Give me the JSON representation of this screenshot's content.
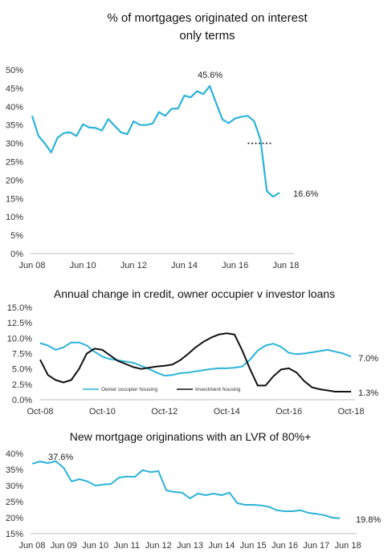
{
  "chart_data": [
    {
      "type": "line",
      "title_lines": [
        "% of mortgages originated on interest",
        "only terms"
      ],
      "yticks": [
        "0%",
        "5%",
        "10%",
        "15%",
        "20%",
        "25%",
        "30%",
        "35%",
        "40%",
        "45%",
        "50%"
      ],
      "ylim": [
        0,
        50
      ],
      "xticks": [
        "Jun 08",
        "Jun 10",
        "Jun 12",
        "Jun 14",
        "Jun 16",
        "Jun 18"
      ],
      "x_tick_years": [
        2008.5,
        2010.5,
        2012.5,
        2014.5,
        2016.5,
        2018.5
      ],
      "xlim": [
        2008.5,
        2018.6
      ],
      "grid": false,
      "color": "#2bb3d9",
      "series": [
        {
          "x": [
            2008.5,
            2008.75,
            2009.0,
            2009.25,
            2009.5,
            2009.75,
            2010.0,
            2010.25,
            2010.5,
            2010.75,
            2011.0,
            2011.25,
            2011.5,
            2011.75,
            2012.0,
            2012.25,
            2012.5,
            2012.75,
            2013.0,
            2013.25,
            2013.5,
            2013.75,
            2014.0,
            2014.25,
            2014.5,
            2014.75,
            2015.0,
            2015.25,
            2015.5,
            2015.75,
            2016.0,
            2016.25,
            2016.5,
            2016.75,
            2017.0,
            2017.25,
            2017.5,
            2017.75,
            2018.0,
            2018.25
          ],
          "values": [
            37.5,
            32.0,
            30.0,
            27.5,
            31.5,
            32.8,
            33.0,
            32.0,
            35.2,
            34.3,
            34.2,
            33.5,
            36.6,
            34.8,
            33.0,
            32.5,
            36.0,
            35.0,
            35.0,
            35.4,
            38.5,
            37.5,
            39.4,
            39.5,
            43.0,
            42.5,
            44.2,
            43.4,
            45.6,
            41.0,
            36.5,
            35.5,
            36.8,
            37.2,
            37.5,
            36.0,
            31.0,
            17.0,
            15.5,
            16.6
          ]
        }
      ],
      "reference_line": {
        "x": [
          2017.0,
          2018.0
        ],
        "value": 30.0
      },
      "annotations": [
        "45.6%",
        "16.6%"
      ]
    },
    {
      "type": "line",
      "title": "Annual change in credit, owner occupier v investor loans",
      "yticks": [
        "0.0%",
        "2.5%",
        "5.0%",
        "7.5%",
        "10.0%",
        "12.5%",
        "15.0%"
      ],
      "ylim": [
        0,
        15
      ],
      "xticks": [
        "Oct-08",
        "Oct-10",
        "Oct-12",
        "Oct-14",
        "Oct-16",
        "Oct-18"
      ],
      "x_tick_years": [
        2008.75,
        2010.75,
        2012.75,
        2014.75,
        2016.75,
        2018.75
      ],
      "xlim": [
        2008.75,
        2018.75
      ],
      "grid": false,
      "legend_position": "bottom-inside",
      "series": [
        {
          "name": "Owner occupier housing",
          "color": "#2bb3d9",
          "x": [
            2008.75,
            2009.0,
            2009.25,
            2009.5,
            2009.75,
            2010.0,
            2010.25,
            2010.5,
            2010.75,
            2011.0,
            2011.25,
            2011.5,
            2011.75,
            2012.0,
            2012.25,
            2012.5,
            2012.75,
            2013.0,
            2013.25,
            2013.5,
            2013.75,
            2014.0,
            2014.25,
            2014.5,
            2014.75,
            2015.0,
            2015.25,
            2015.5,
            2015.75,
            2016.0,
            2016.25,
            2016.5,
            2016.75,
            2017.0,
            2017.25,
            2017.5,
            2017.75,
            2018.0,
            2018.25,
            2018.5,
            2018.75
          ],
          "values": [
            9.2,
            8.8,
            8.1,
            8.5,
            9.3,
            9.3,
            8.8,
            7.8,
            7.0,
            6.6,
            6.4,
            6.2,
            6.0,
            5.5,
            5.0,
            4.4,
            3.9,
            4.0,
            4.3,
            4.4,
            4.6,
            4.8,
            5.0,
            5.1,
            5.1,
            5.2,
            5.4,
            6.5,
            8.0,
            8.8,
            9.1,
            8.6,
            7.6,
            7.4,
            7.5,
            7.7,
            7.9,
            8.1,
            7.8,
            7.5,
            7.0
          ]
        },
        {
          "name": "Investment housing",
          "color": "#111111",
          "x": [
            2008.75,
            2009.0,
            2009.25,
            2009.5,
            2009.75,
            2010.0,
            2010.25,
            2010.5,
            2010.75,
            2011.0,
            2011.25,
            2011.5,
            2011.75,
            2012.0,
            2012.25,
            2012.5,
            2012.75,
            2013.0,
            2013.25,
            2013.5,
            2013.75,
            2014.0,
            2014.25,
            2014.5,
            2014.75,
            2015.0,
            2015.25,
            2015.5,
            2015.75,
            2016.0,
            2016.25,
            2016.5,
            2016.75,
            2017.0,
            2017.25,
            2017.5,
            2017.75,
            2018.0,
            2018.25,
            2018.5,
            2018.75
          ],
          "values": [
            6.5,
            4.0,
            3.2,
            2.8,
            3.2,
            5.0,
            7.5,
            8.3,
            8.1,
            7.2,
            6.3,
            5.8,
            5.3,
            5.0,
            5.2,
            5.4,
            5.5,
            5.7,
            6.4,
            7.4,
            8.5,
            9.4,
            10.1,
            10.6,
            10.8,
            10.6,
            8.0,
            5.0,
            2.3,
            2.3,
            3.8,
            4.9,
            5.1,
            4.4,
            3.0,
            2.0,
            1.7,
            1.5,
            1.3,
            1.3,
            1.3
          ]
        }
      ],
      "annotations": [
        "7.0%",
        "1.3%"
      ]
    },
    {
      "type": "line",
      "title": "New mortgage originations with an LVR of 80%+",
      "yticks": [
        "15%",
        "20%",
        "25%",
        "30%",
        "35%",
        "40%"
      ],
      "ylim": [
        15,
        40
      ],
      "xticks": [
        "Jun 08",
        "Jun 09",
        "Jun 10",
        "Jun 11",
        "Jun 12",
        "Jun 13",
        "Jun 14",
        "Jun 15",
        "Jun 16",
        "Jun 17",
        "Jun 18"
      ],
      "x_tick_years": [
        2008.5,
        2009.5,
        2010.5,
        2011.5,
        2012.5,
        2013.5,
        2014.5,
        2015.5,
        2016.5,
        2017.5,
        2018.5
      ],
      "xlim": [
        2008.5,
        2018.6
      ],
      "grid": false,
      "color": "#2bb3d9",
      "series": [
        {
          "x": [
            2008.5,
            2008.75,
            2009.0,
            2009.25,
            2009.5,
            2009.75,
            2010.0,
            2010.25,
            2010.5,
            2010.75,
            2011.0,
            2011.25,
            2011.5,
            2011.75,
            2012.0,
            2012.25,
            2012.5,
            2012.75,
            2013.0,
            2013.25,
            2013.5,
            2013.75,
            2014.0,
            2014.25,
            2014.5,
            2014.75,
            2015.0,
            2015.25,
            2015.5,
            2015.75,
            2016.0,
            2016.25,
            2016.5,
            2016.75,
            2017.0,
            2017.25,
            2017.5,
            2017.75,
            2018.0,
            2018.25
          ],
          "values": [
            36.8,
            37.5,
            37.0,
            37.6,
            35.5,
            31.3,
            32.0,
            31.3,
            30.0,
            30.3,
            30.5,
            32.5,
            32.8,
            32.7,
            34.8,
            34.2,
            34.5,
            28.5,
            28.0,
            27.8,
            26.0,
            27.5,
            27.0,
            27.5,
            27.0,
            27.8,
            24.5,
            24.0,
            24.0,
            23.8,
            23.4,
            22.3,
            22.0,
            22.0,
            22.3,
            21.5,
            21.2,
            20.8,
            20.0,
            19.8
          ]
        }
      ],
      "annotations": [
        "37.6%",
        "19.8%"
      ]
    }
  ]
}
